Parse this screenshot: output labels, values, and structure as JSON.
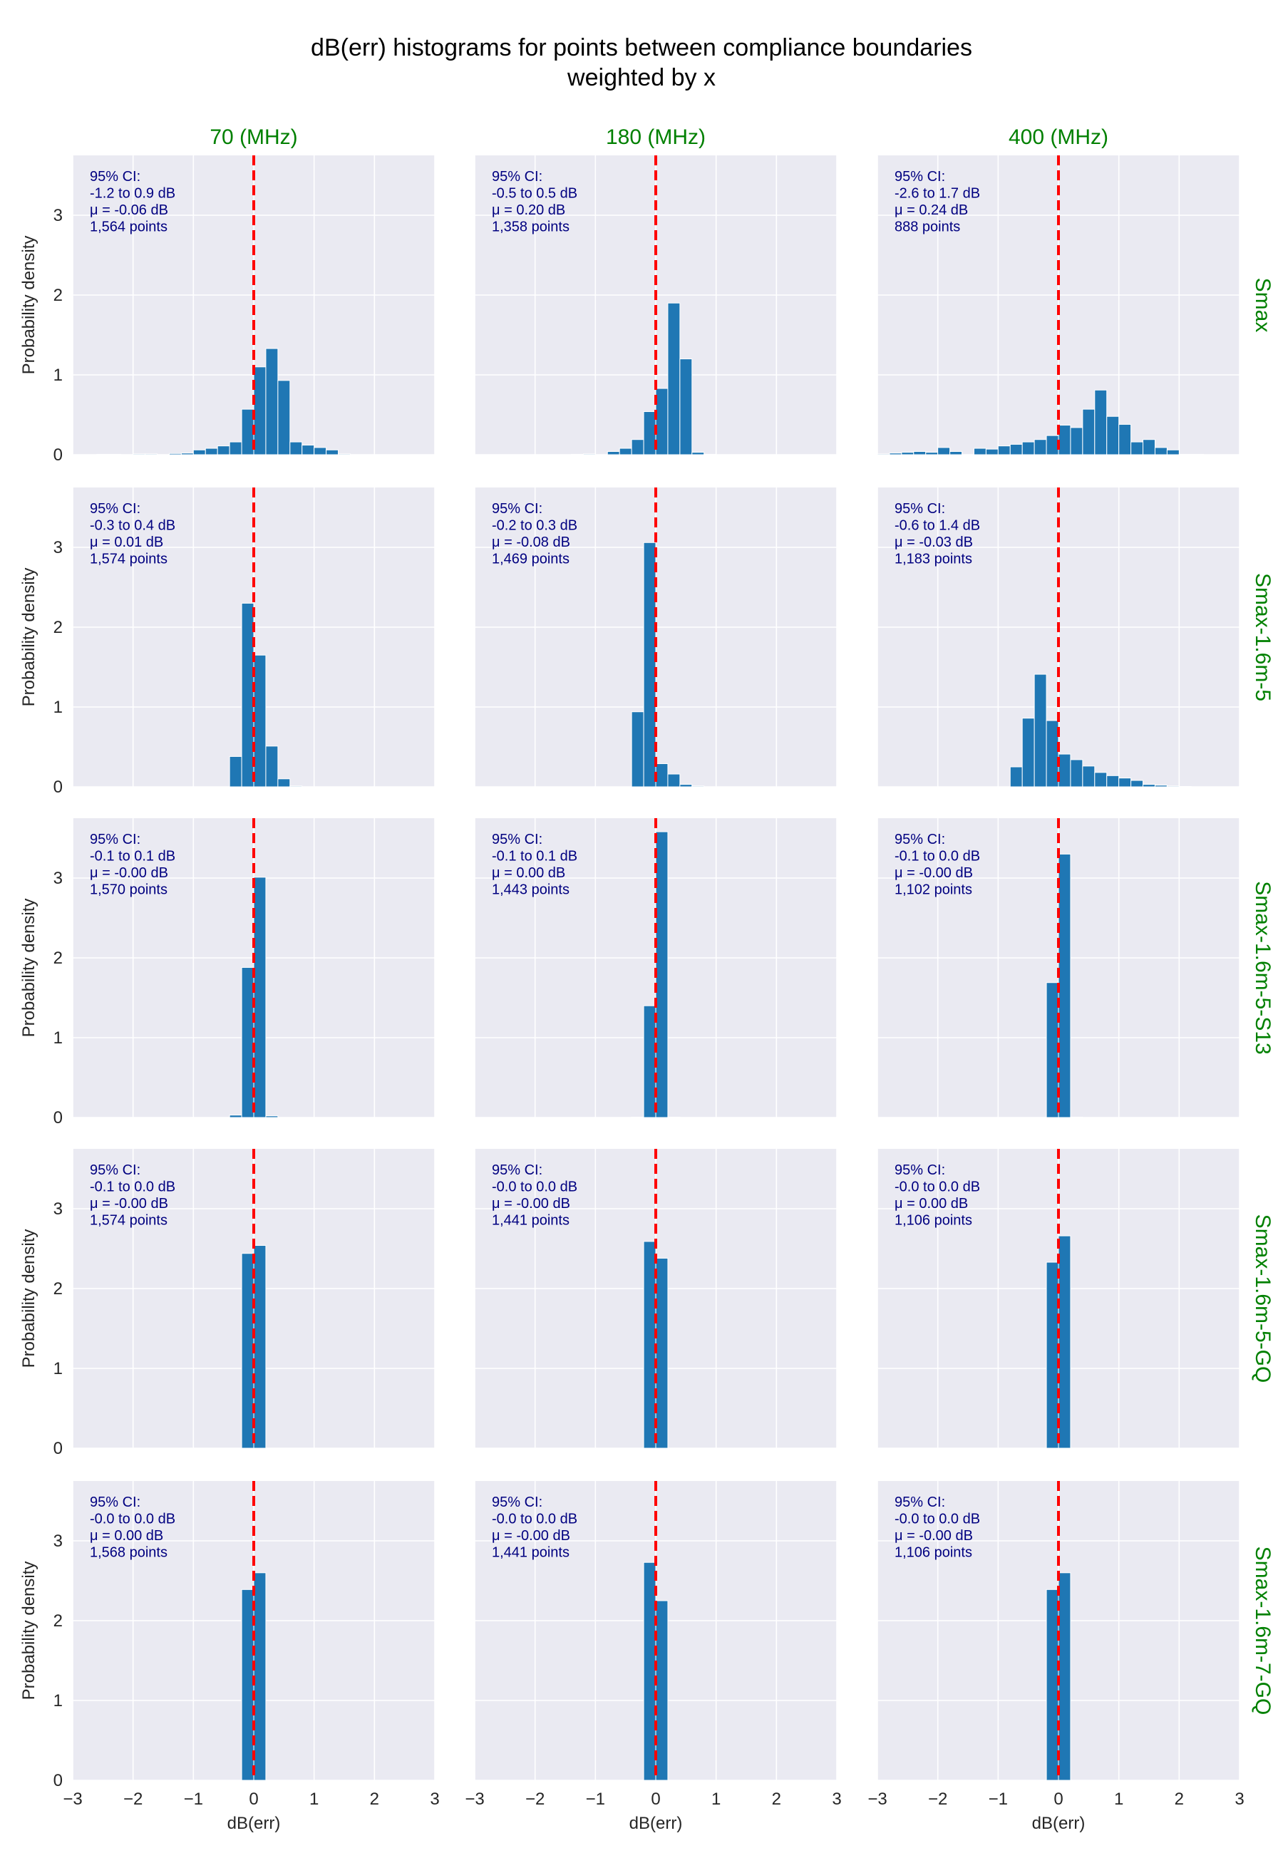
{
  "figure": {
    "title_line1": "dB(err) histograms for points between compliance boundaries",
    "title_line2": "weighted by x",
    "ylabel": "Probability density",
    "xlabel": "dB(err)",
    "col_titles": [
      "70 (MHz)",
      "180 (MHz)",
      "400 (MHz)"
    ],
    "row_titles": [
      "Smax",
      "Smax-1.6m-5",
      "Smax-1.6m-5-S13",
      "Smax-1.6m-5-GQ",
      "Smax-1.6m-7-GQ"
    ],
    "colors": {
      "axes_bg": "#eaeaf2",
      "grid": "#ffffff",
      "bar": "#1f77b4",
      "zero_line": "#ff0000",
      "annotation": "#000080",
      "facet_title": "#008000",
      "text": "#262626"
    }
  },
  "chart_data": {
    "type": "bar",
    "xlim": [
      -3,
      3
    ],
    "ylim": [
      0,
      3.75
    ],
    "xticks": [
      -3,
      -2,
      -1,
      0,
      1,
      2,
      3
    ],
    "xtick_labels": [
      "−3",
      "−2",
      "−1",
      "0",
      "1",
      "2",
      "3"
    ],
    "yticks": [
      0,
      1,
      2,
      3
    ],
    "ytick_labels": [
      "0",
      "1",
      "2",
      "3"
    ],
    "reference_line_x": 0,
    "grid": true,
    "panels": [
      {
        "row": 0,
        "col": 0,
        "annotation": [
          "95% CI:",
          "-1.2 to 0.9 dB",
          "μ = -0.06 dB",
          "1,564 points"
        ],
        "bins": [
          [
            -2.6,
            -2.4,
            0.005
          ],
          [
            -2.4,
            -2.2,
            0.005
          ],
          [
            -2.0,
            -1.8,
            0.01
          ],
          [
            -1.8,
            -1.6,
            0.01
          ],
          [
            -1.4,
            -1.2,
            0.015
          ],
          [
            -1.2,
            -1.0,
            0.02
          ],
          [
            -1.0,
            -0.8,
            0.06
          ],
          [
            -0.8,
            -0.6,
            0.08
          ],
          [
            -0.6,
            -0.4,
            0.11
          ],
          [
            -0.4,
            -0.2,
            0.16
          ],
          [
            -0.2,
            0.0,
            0.57
          ],
          [
            0.0,
            0.2,
            1.1
          ],
          [
            0.2,
            0.4,
            1.33
          ],
          [
            0.4,
            0.6,
            0.93
          ],
          [
            0.6,
            0.8,
            0.16
          ],
          [
            0.8,
            1.0,
            0.12
          ],
          [
            1.0,
            1.2,
            0.09
          ],
          [
            1.2,
            1.4,
            0.06
          ],
          [
            1.4,
            1.6,
            0.01
          ]
        ]
      },
      {
        "row": 0,
        "col": 1,
        "annotation": [
          "95% CI:",
          "-0.5 to 0.5 dB",
          "μ = 0.20 dB",
          "1,358 points"
        ],
        "bins": [
          [
            -1.4,
            -1.2,
            0.005
          ],
          [
            -1.2,
            -1.0,
            0.01
          ],
          [
            -0.8,
            -0.6,
            0.04
          ],
          [
            -0.6,
            -0.4,
            0.08
          ],
          [
            -0.4,
            -0.2,
            0.19
          ],
          [
            -0.2,
            0.0,
            0.54
          ],
          [
            0.0,
            0.2,
            0.83
          ],
          [
            0.2,
            0.4,
            1.9
          ],
          [
            0.4,
            0.6,
            1.2
          ],
          [
            0.6,
            0.8,
            0.03
          ],
          [
            0.8,
            1.0,
            0.005
          ]
        ]
      },
      {
        "row": 0,
        "col": 2,
        "annotation": [
          "95% CI:",
          "-2.6 to 1.7 dB",
          "μ = 0.24 dB",
          "888 points"
        ],
        "bins": [
          [
            -3.0,
            -2.8,
            0.01
          ],
          [
            -2.8,
            -2.6,
            0.02
          ],
          [
            -2.6,
            -2.4,
            0.03
          ],
          [
            -2.4,
            -2.2,
            0.04
          ],
          [
            -2.2,
            -2.0,
            0.03
          ],
          [
            -2.0,
            -1.8,
            0.09
          ],
          [
            -1.8,
            -1.6,
            0.04
          ],
          [
            -1.4,
            -1.2,
            0.08
          ],
          [
            -1.2,
            -1.0,
            0.07
          ],
          [
            -1.0,
            -0.8,
            0.11
          ],
          [
            -0.8,
            -0.6,
            0.13
          ],
          [
            -0.6,
            -0.4,
            0.16
          ],
          [
            -0.4,
            -0.2,
            0.19
          ],
          [
            -0.2,
            0.0,
            0.24
          ],
          [
            0.0,
            0.2,
            0.37
          ],
          [
            0.2,
            0.4,
            0.34
          ],
          [
            0.4,
            0.6,
            0.57
          ],
          [
            0.6,
            0.8,
            0.81
          ],
          [
            0.8,
            1.0,
            0.48
          ],
          [
            1.0,
            1.2,
            0.38
          ],
          [
            1.2,
            1.4,
            0.16
          ],
          [
            1.4,
            1.6,
            0.19
          ],
          [
            1.6,
            1.8,
            0.09
          ],
          [
            1.8,
            2.0,
            0.06
          ],
          [
            2.0,
            2.2,
            0.005
          ],
          [
            2.2,
            2.4,
            0.005
          ]
        ]
      },
      {
        "row": 1,
        "col": 0,
        "annotation": [
          "95% CI:",
          "-0.3 to 0.4 dB",
          "μ = 0.01 dB",
          "1,574 points"
        ],
        "bins": [
          [
            -0.4,
            -0.2,
            0.38
          ],
          [
            -0.2,
            0.0,
            2.3
          ],
          [
            0.0,
            0.2,
            1.65
          ],
          [
            0.2,
            0.4,
            0.51
          ],
          [
            0.4,
            0.6,
            0.1
          ],
          [
            0.6,
            0.8,
            0.01
          ]
        ]
      },
      {
        "row": 1,
        "col": 1,
        "annotation": [
          "95% CI:",
          "-0.2 to 0.3 dB",
          "μ = -0.08 dB",
          "1,469 points"
        ],
        "bins": [
          [
            -0.4,
            -0.2,
            0.94
          ],
          [
            -0.2,
            0.0,
            3.06
          ],
          [
            0.0,
            0.2,
            0.29
          ],
          [
            0.2,
            0.4,
            0.16
          ],
          [
            0.4,
            0.6,
            0.03
          ],
          [
            0.6,
            0.8,
            0.01
          ]
        ]
      },
      {
        "row": 1,
        "col": 2,
        "annotation": [
          "95% CI:",
          "-0.6 to 1.4 dB",
          "μ = -0.03 dB",
          "1,183 points"
        ],
        "bins": [
          [
            -0.8,
            -0.6,
            0.25
          ],
          [
            -0.6,
            -0.4,
            0.86
          ],
          [
            -0.4,
            -0.2,
            1.41
          ],
          [
            -0.2,
            0.0,
            0.83
          ],
          [
            0.0,
            0.2,
            0.41
          ],
          [
            0.2,
            0.4,
            0.34
          ],
          [
            0.4,
            0.6,
            0.26
          ],
          [
            0.6,
            0.8,
            0.18
          ],
          [
            0.8,
            1.0,
            0.14
          ],
          [
            1.0,
            1.2,
            0.11
          ],
          [
            1.2,
            1.4,
            0.08
          ],
          [
            1.4,
            1.6,
            0.03
          ],
          [
            1.6,
            1.8,
            0.02
          ],
          [
            1.8,
            2.0,
            0.01
          ],
          [
            2.0,
            2.2,
            0.005
          ]
        ]
      },
      {
        "row": 2,
        "col": 0,
        "annotation": [
          "95% CI:",
          "-0.1 to 0.1 dB",
          "μ = -0.00 dB",
          "1,570 points"
        ],
        "bins": [
          [
            -0.4,
            -0.2,
            0.03
          ],
          [
            -0.2,
            0.0,
            1.88
          ],
          [
            0.0,
            0.2,
            3.01
          ],
          [
            0.2,
            0.4,
            0.02
          ]
        ]
      },
      {
        "row": 2,
        "col": 1,
        "annotation": [
          "95% CI:",
          "-0.1 to 0.1 dB",
          "μ = 0.00 dB",
          "1,443 points"
        ],
        "bins": [
          [
            -0.4,
            -0.2,
            0.005
          ],
          [
            -0.2,
            0.0,
            1.4
          ],
          [
            0.0,
            0.2,
            3.58
          ],
          [
            0.2,
            0.4,
            0.005
          ]
        ]
      },
      {
        "row": 2,
        "col": 2,
        "annotation": [
          "95% CI:",
          "-0.1 to 0.0 dB",
          "μ = -0.00 dB",
          "1,102 points"
        ],
        "bins": [
          [
            -0.2,
            0.0,
            1.69
          ],
          [
            0.0,
            0.2,
            3.3
          ],
          [
            0.2,
            0.4,
            0.005
          ]
        ]
      },
      {
        "row": 3,
        "col": 0,
        "annotation": [
          "95% CI:",
          "-0.1 to 0.0 dB",
          "μ = -0.00 dB",
          "1,574 points"
        ],
        "bins": [
          [
            -0.2,
            0.0,
            2.44
          ],
          [
            0.0,
            0.2,
            2.54
          ]
        ]
      },
      {
        "row": 3,
        "col": 1,
        "annotation": [
          "95% CI:",
          "-0.0 to 0.0 dB",
          "μ = -0.00 dB",
          "1,441 points"
        ],
        "bins": [
          [
            -0.2,
            0.0,
            2.59
          ],
          [
            0.0,
            0.2,
            2.38
          ]
        ]
      },
      {
        "row": 3,
        "col": 2,
        "annotation": [
          "95% CI:",
          "-0.0 to 0.0 dB",
          "μ = 0.00 dB",
          "1,106 points"
        ],
        "bins": [
          [
            -0.2,
            0.0,
            2.33
          ],
          [
            0.0,
            0.2,
            2.66
          ]
        ]
      },
      {
        "row": 4,
        "col": 0,
        "annotation": [
          "95% CI:",
          "-0.0 to 0.0 dB",
          "μ = 0.00 dB",
          "1,568 points"
        ],
        "bins": [
          [
            -0.2,
            0.0,
            2.39
          ],
          [
            0.0,
            0.2,
            2.6
          ]
        ]
      },
      {
        "row": 4,
        "col": 1,
        "annotation": [
          "95% CI:",
          "-0.0 to 0.0 dB",
          "μ = -0.00 dB",
          "1,441 points"
        ],
        "bins": [
          [
            -0.2,
            0.0,
            2.73
          ],
          [
            0.0,
            0.2,
            2.25
          ]
        ]
      },
      {
        "row": 4,
        "col": 2,
        "annotation": [
          "95% CI:",
          "-0.0 to 0.0 dB",
          "μ = -0.00 dB",
          "1,106 points"
        ],
        "bins": [
          [
            -0.2,
            0.0,
            2.39
          ],
          [
            0.0,
            0.2,
            2.6
          ]
        ]
      }
    ]
  }
}
